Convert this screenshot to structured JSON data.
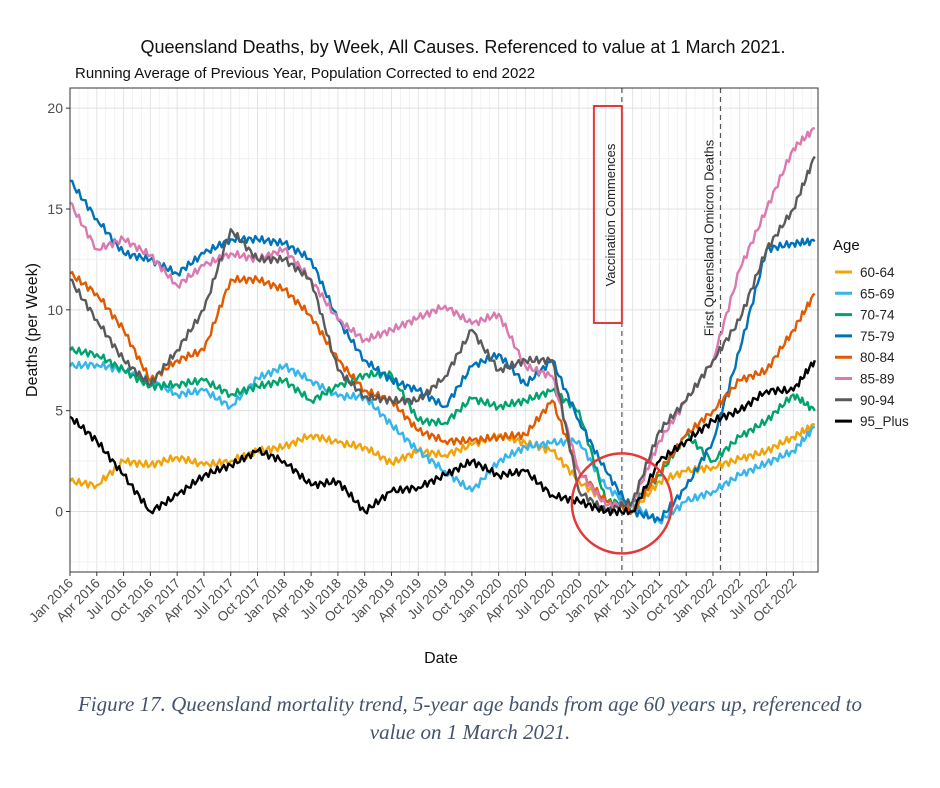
{
  "chart_data": {
    "type": "line",
    "title": "Queensland Deaths, by Week, All Causes. Referenced to value at 1 March 2021.",
    "subtitle": "Running Average of Previous Year, Population Corrected to end 2022",
    "xlabel": "Date",
    "ylabel": "Deaths (per Week)",
    "ylim": [
      -3,
      21
    ],
    "xlim": [
      2016.0,
      2022.98
    ],
    "grid": true,
    "y_ticks": [
      0,
      5,
      10,
      15,
      20
    ],
    "x_tick_labels": [
      "Jan 2016",
      "Apr 2016",
      "Jul 2016",
      "Oct 2016",
      "Jan 2017",
      "Apr 2017",
      "Jul 2017",
      "Oct 2017",
      "Jan 2018",
      "Apr 2018",
      "Jul 2018",
      "Oct 2018",
      "Jan 2019",
      "Apr 2019",
      "Jul 2019",
      "Oct 2019",
      "Jan 2020",
      "Apr 2020",
      "Jul 2020",
      "Oct 2020",
      "Jan 2021",
      "Apr 2021",
      "Jul 2021",
      "Oct 2021",
      "Jan 2022",
      "Apr 2022",
      "Jul 2022",
      "Oct 2022"
    ],
    "legend_title": "Age",
    "legend_position": "right",
    "x": [
      2016.0,
      2016.25,
      2016.5,
      2016.75,
      2017.0,
      2017.25,
      2017.5,
      2017.75,
      2018.0,
      2018.25,
      2018.5,
      2018.75,
      2019.0,
      2019.25,
      2019.5,
      2019.75,
      2020.0,
      2020.25,
      2020.5,
      2020.75,
      2021.0,
      2021.25,
      2021.5,
      2021.75,
      2022.0,
      2022.25,
      2022.5,
      2022.75,
      2022.95
    ],
    "series": [
      {
        "name": "60-64",
        "color": "#f0a30a",
        "values": [
          1.5,
          1.3,
          2.5,
          2.3,
          2.7,
          2.3,
          2.5,
          3.0,
          3.2,
          3.8,
          3.4,
          3.2,
          2.4,
          3.0,
          2.8,
          3.3,
          3.8,
          3.4,
          3.0,
          1.5,
          0.5,
          0.0,
          1.5,
          2.0,
          2.2,
          2.6,
          3.0,
          3.7,
          4.3
        ]
      },
      {
        "name": "65-69",
        "color": "#35b5ea",
        "values": [
          7.2,
          7.3,
          7.0,
          6.5,
          5.8,
          6.0,
          5.2,
          6.6,
          7.2,
          6.5,
          5.7,
          5.7,
          4.3,
          3.0,
          2.0,
          1.0,
          2.5,
          3.2,
          3.4,
          3.5,
          1.2,
          0.3,
          -0.5,
          0.5,
          1.0,
          1.8,
          2.4,
          3.0,
          4.2
        ]
      },
      {
        "name": "70-74",
        "color": "#00a36e",
        "values": [
          8.0,
          7.8,
          7.0,
          6.2,
          6.3,
          6.5,
          5.8,
          6.2,
          6.5,
          5.5,
          6.2,
          6.8,
          6.8,
          4.5,
          4.4,
          5.6,
          5.2,
          5.5,
          6.0,
          5.0,
          0.5,
          0.4,
          1.8,
          3.8,
          2.5,
          3.7,
          4.5,
          5.8,
          5.0
        ]
      },
      {
        "name": "75-79",
        "color": "#0072b8",
        "values": [
          16.4,
          14.5,
          12.8,
          12.5,
          11.8,
          12.8,
          13.5,
          13.5,
          13.3,
          12.5,
          9.5,
          7.5,
          6.5,
          6.0,
          5.2,
          7.2,
          7.8,
          6.3,
          7.5,
          4.5,
          2.0,
          0.0,
          -0.4,
          1.2,
          3.5,
          8.0,
          13.0,
          13.3,
          13.4
        ]
      },
      {
        "name": "80-84",
        "color": "#e05a00",
        "values": [
          11.8,
          10.8,
          9.0,
          6.5,
          7.5,
          8.0,
          11.5,
          11.5,
          11.0,
          9.7,
          7.5,
          6.0,
          5.5,
          4.0,
          3.5,
          3.5,
          3.7,
          3.8,
          5.5,
          2.0,
          0.5,
          0.0,
          2.0,
          3.8,
          5.0,
          6.5,
          7.0,
          9.0,
          10.8
        ]
      },
      {
        "name": "85-89",
        "color": "#d97ab0",
        "values": [
          15.3,
          13.0,
          13.5,
          12.7,
          11.2,
          12.2,
          12.8,
          12.5,
          13.0,
          11.5,
          9.5,
          8.5,
          9.0,
          9.6,
          10.2,
          9.3,
          9.8,
          7.2,
          6.7,
          2.0,
          0.3,
          0.4,
          3.5,
          5.5,
          7.5,
          12.0,
          15.0,
          18.0,
          19.0
        ]
      },
      {
        "name": "90-94",
        "color": "#5a5a5a",
        "values": [
          11.5,
          9.5,
          7.5,
          6.3,
          8.0,
          10.0,
          14.0,
          12.5,
          12.5,
          11.5,
          7.0,
          5.7,
          5.5,
          5.5,
          6.7,
          9.0,
          7.0,
          7.5,
          7.5,
          1.0,
          0.0,
          0.5,
          4.0,
          5.5,
          7.5,
          9.5,
          13.0,
          15.0,
          17.6
        ]
      },
      {
        "name": "95_Plus",
        "color": "#000000",
        "values": [
          4.7,
          3.5,
          1.8,
          0.0,
          0.8,
          1.8,
          2.3,
          3.0,
          2.5,
          1.3,
          1.5,
          0.0,
          1.0,
          1.2,
          1.8,
          2.5,
          1.8,
          2.0,
          0.8,
          0.5,
          0.0,
          0.0,
          2.5,
          3.5,
          4.5,
          5.0,
          6.0,
          6.0,
          7.5
        ]
      }
    ],
    "annotations": [
      {
        "label": "Vaccination Commences",
        "x": 2021.15
      },
      {
        "label": "First Queensland Omicron Deaths",
        "x": 2022.07
      }
    ],
    "highlight_circle": {
      "x": 2021.15,
      "y": 0.4
    }
  },
  "caption": {
    "line1": "Figure 17. Queensland mortality trend, 5-year age bands from age 60 years up, referenced to",
    "line2": "value on 1 March 2021."
  }
}
